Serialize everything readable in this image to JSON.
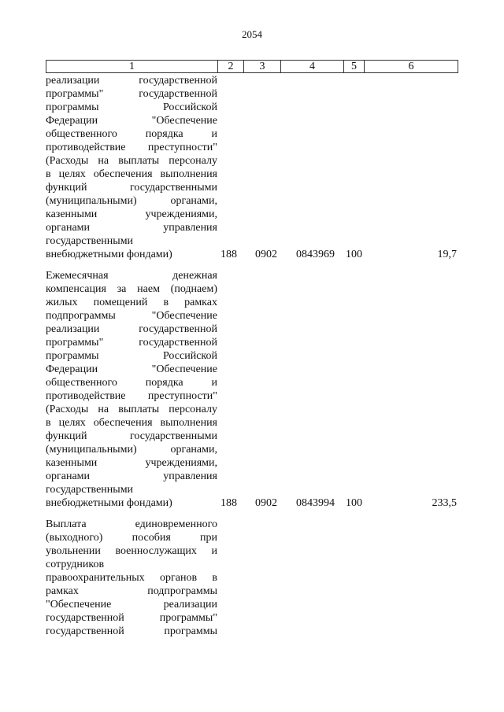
{
  "page_number": "2054",
  "table": {
    "header": [
      "1",
      "2",
      "3",
      "4",
      "5",
      "6"
    ],
    "rows": [
      {
        "description_lines": [
          "реализации государственной",
          "программы\" государственной",
          "программы Российской",
          "Федерации \"Обеспечение",
          "общественного порядка и",
          "противодействие преступности\"",
          "(Расходы на выплаты персоналу",
          "в целях обеспечения выполнения",
          "функций государственными",
          "(муниципальными) органами,",
          "казенными учреждениями,",
          "органами управления",
          "государственными",
          "внебюджетными фондами)"
        ],
        "col2": "188",
        "col3": "0902",
        "col4": "0843969",
        "col5": "100",
        "col6": "19,7"
      },
      {
        "description_lines": [
          "Ежемесячная денежная",
          "компенсация за наем (поднаем)",
          "жилых помещений в рамках",
          "подпрограммы \"Обеспечение",
          "реализации государственной",
          "программы\" государственной",
          "программы Российской",
          "Федерации \"Обеспечение",
          "общественного порядка и",
          "противодействие преступности\"",
          "(Расходы на выплаты персоналу",
          "в целях обеспечения выполнения",
          "функций государственными",
          "(муниципальными) органами,",
          "казенными учреждениями,",
          "органами управления",
          "государственными",
          "внебюджетными фондами)"
        ],
        "col2": "188",
        "col3": "0902",
        "col4": "0843994",
        "col5": "100",
        "col6": "233,5"
      },
      {
        "description_lines": [
          "Выплата единовременного",
          "(выходного) пособия при",
          "увольнении военнослужащих и",
          "сотрудников",
          "правоохранительных органов в",
          "рамках подпрограммы",
          "\"Обеспечение реализации",
          "государственной программы\"",
          "государственной программы"
        ]
      }
    ]
  }
}
